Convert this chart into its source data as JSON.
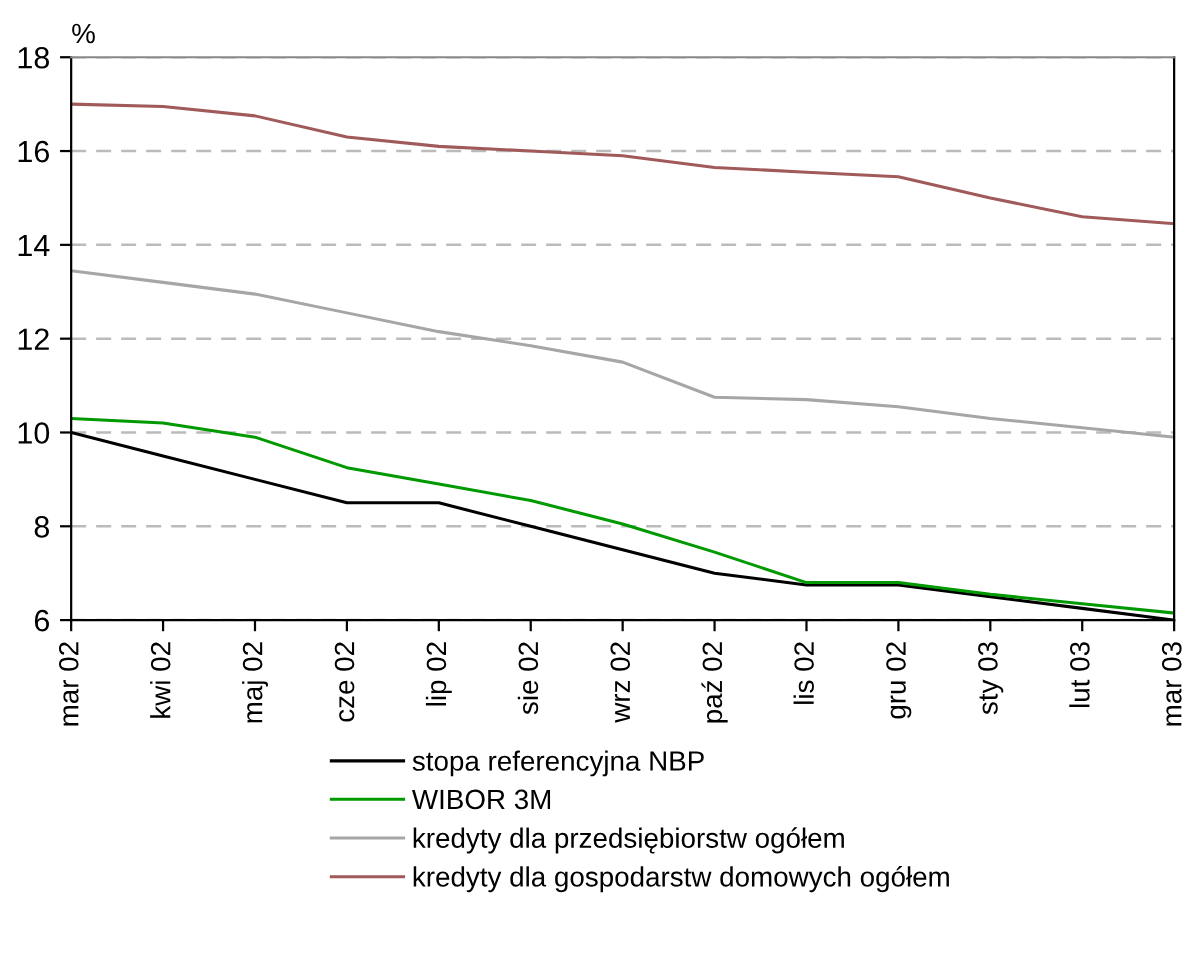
{
  "chart_data": {
    "type": "line",
    "ylabel": "%",
    "categories": [
      "mar 02",
      "kwi 02",
      "maj 02",
      "cze 02",
      "lip 02",
      "sie 02",
      "wrz 02",
      "paź 02",
      "lis 02",
      "gru 02",
      "sty 03",
      "lut 03",
      "mar 03"
    ],
    "series": [
      {
        "name": "stopa referencyjna NBP",
        "color": "#000000",
        "values": [
          10,
          9.5,
          9,
          8.5,
          8.5,
          8,
          7.5,
          7,
          6.75,
          6.75,
          6.5,
          6.25,
          6
        ]
      },
      {
        "name": "WIBOR 3M",
        "color": "#009900",
        "values": [
          10.3,
          10.2,
          9.9,
          9.25,
          8.9,
          8.55,
          8.05,
          7.45,
          6.8,
          6.8,
          6.55,
          6.35,
          6.15
        ]
      },
      {
        "name": "kredyty dla przedsiębiorstw ogółem",
        "color": "#a6a6a6",
        "values": [
          13.45,
          13.2,
          12.95,
          12.55,
          12.15,
          11.85,
          11.5,
          10.75,
          10.7,
          10.55,
          10.3,
          10.1,
          9.9
        ]
      },
      {
        "name": "kredyty dla gospodarstw domowych ogółem",
        "color": "#a05a5a",
        "values": [
          17.0,
          16.95,
          16.75,
          16.3,
          16.1,
          16.0,
          15.9,
          15.65,
          15.55,
          15.45,
          15.0,
          14.6,
          14.45
        ]
      }
    ],
    "ylim": [
      6,
      18
    ],
    "yticks": [
      6,
      8,
      10,
      12,
      14,
      16,
      18
    ],
    "grid": "y",
    "legend": "bottom",
    "marker": "none",
    "line_style": "solid"
  }
}
